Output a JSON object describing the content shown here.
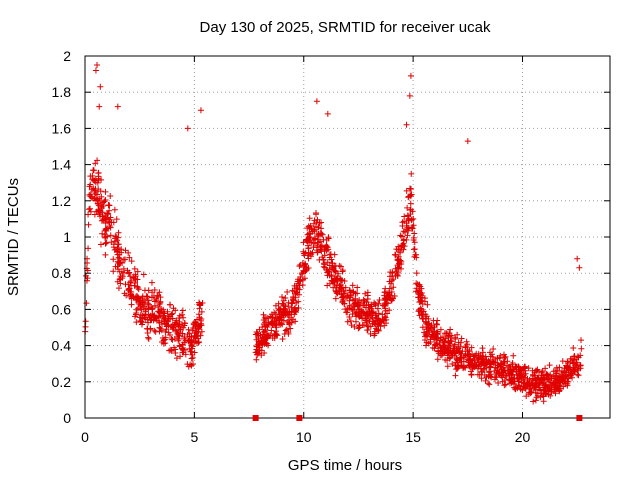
{
  "chart_data": {
    "type": "scatter",
    "title": "Day 130 of 2025, SRMTID for receiver ucak",
    "xlabel": "GPS time / hours",
    "ylabel": "SRMTID / TECUs",
    "xlim": [
      0,
      24
    ],
    "ylim": [
      0,
      2
    ],
    "xticks": [
      "0",
      "5",
      "10",
      "15",
      "20"
    ],
    "yticks": [
      "0",
      "0.2",
      "0.4",
      "0.6",
      "0.8",
      "1",
      "1.2",
      "1.4",
      "1.6",
      "1.8",
      "2"
    ],
    "grid": true,
    "marker": "+",
    "color": "#e00000",
    "gap_markers_x": [
      7.8,
      9.8,
      22.6
    ],
    "segments": [
      {
        "name": "segment-1",
        "x_range": [
          0,
          5.4
        ],
        "profile": [
          [
            0,
            0.5
          ],
          [
            0.2,
            1.25
          ],
          [
            0.5,
            1.3
          ],
          [
            0.8,
            1.1
          ],
          [
            1.2,
            1.05
          ],
          [
            1.6,
            0.85
          ],
          [
            2.0,
            0.75
          ],
          [
            2.5,
            0.65
          ],
          [
            3.0,
            0.6
          ],
          [
            3.5,
            0.55
          ],
          [
            4.0,
            0.5
          ],
          [
            4.5,
            0.45
          ],
          [
            4.8,
            0.4
          ],
          [
            5.0,
            0.45
          ],
          [
            5.4,
            0.55
          ]
        ],
        "spread": 0.22,
        "count": 520
      },
      {
        "name": "segment-2",
        "x_range": [
          7.8,
          22.7
        ],
        "profile": [
          [
            7.8,
            0.4
          ],
          [
            8.5,
            0.5
          ],
          [
            9.0,
            0.55
          ],
          [
            9.5,
            0.6
          ],
          [
            10.0,
            0.85
          ],
          [
            10.5,
            1.05
          ],
          [
            11.0,
            0.9
          ],
          [
            11.5,
            0.75
          ],
          [
            12.0,
            0.65
          ],
          [
            12.5,
            0.6
          ],
          [
            13.0,
            0.55
          ],
          [
            13.5,
            0.55
          ],
          [
            14.0,
            0.7
          ],
          [
            14.5,
            0.95
          ],
          [
            14.9,
            1.2
          ],
          [
            15.2,
            0.7
          ],
          [
            15.6,
            0.5
          ],
          [
            16.0,
            0.45
          ],
          [
            16.5,
            0.4
          ],
          [
            17.0,
            0.35
          ],
          [
            17.5,
            0.32
          ],
          [
            18.0,
            0.3
          ],
          [
            18.5,
            0.28
          ],
          [
            19.0,
            0.27
          ],
          [
            19.5,
            0.25
          ],
          [
            20.0,
            0.22
          ],
          [
            20.5,
            0.2
          ],
          [
            21.0,
            0.18
          ],
          [
            21.5,
            0.2
          ],
          [
            22.0,
            0.24
          ],
          [
            22.5,
            0.3
          ],
          [
            22.7,
            0.35
          ]
        ],
        "spread": 0.18,
        "count": 1500
      }
    ],
    "peaks": [
      {
        "x": 0.55,
        "y": 1.95
      },
      {
        "x": 0.5,
        "y": 1.92
      },
      {
        "x": 0.7,
        "y": 1.83
      },
      {
        "x": 0.65,
        "y": 1.72
      },
      {
        "x": 1.5,
        "y": 1.72
      },
      {
        "x": 5.3,
        "y": 1.7
      },
      {
        "x": 4.7,
        "y": 1.6
      },
      {
        "x": 10.6,
        "y": 1.75
      },
      {
        "x": 11.1,
        "y": 1.68
      },
      {
        "x": 14.9,
        "y": 1.89
      },
      {
        "x": 14.85,
        "y": 1.78
      },
      {
        "x": 14.7,
        "y": 1.62
      },
      {
        "x": 17.5,
        "y": 1.53
      },
      {
        "x": 22.5,
        "y": 0.88
      },
      {
        "x": 22.6,
        "y": 0.83
      }
    ]
  }
}
